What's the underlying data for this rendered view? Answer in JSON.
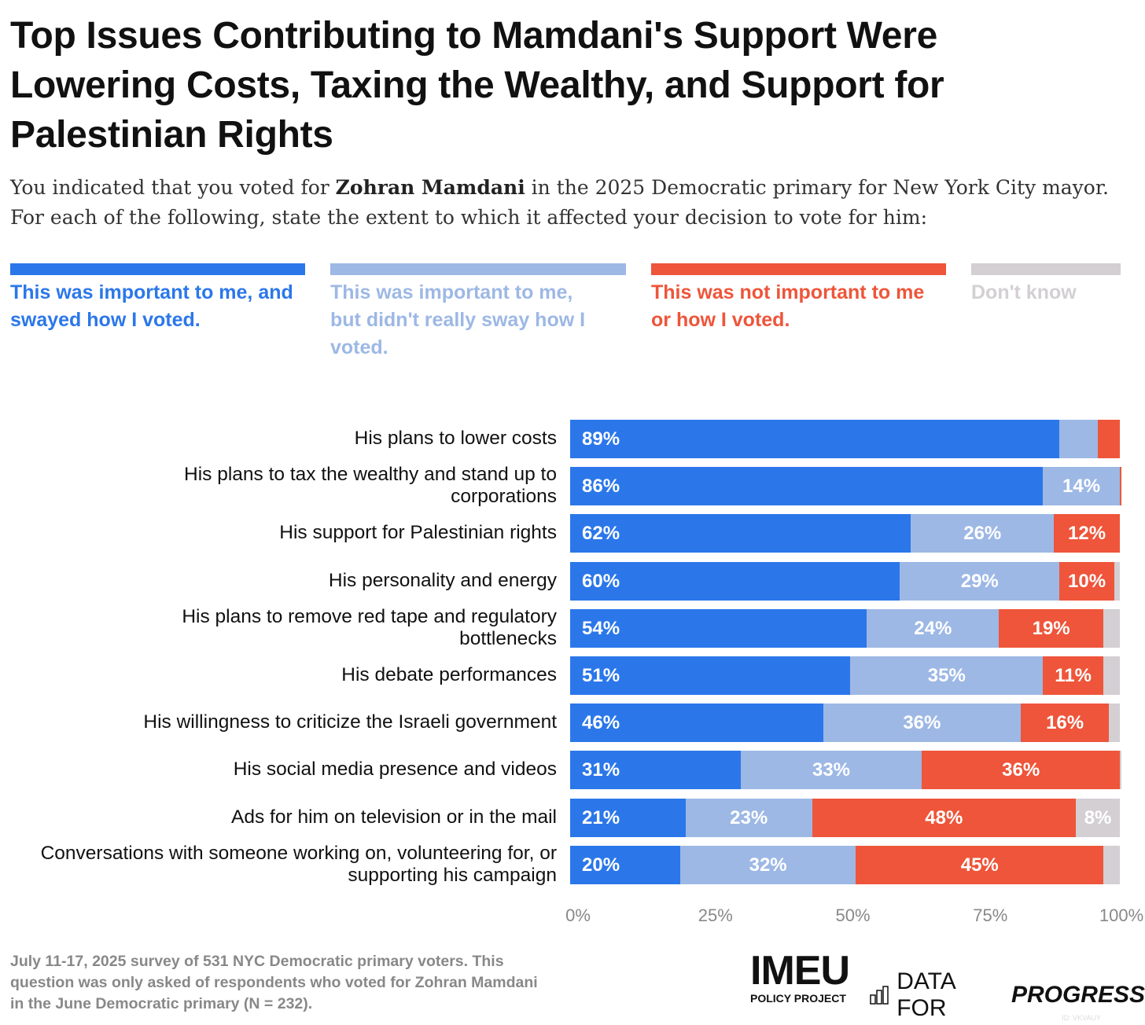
{
  "title": "Top Issues Contributing to Mamdani's Support Were Lowering Costs, Taxing the Wealthy, and Support for Palestinian Rights",
  "subtitle": {
    "pre": "You indicated that you voted for ",
    "bold": "Zohran Mamdani",
    "post": " in the 2025 Democratic primary for New York City mayor. For each of the following, state the extent to which it affected your decision to vote for him:"
  },
  "colors": {
    "swayed": "#2b77ea",
    "not_swayed": "#9db8e5",
    "not_important": "#ee553a",
    "dont_know": "#d3cfd3"
  },
  "chart_data": {
    "type": "bar",
    "orientation": "horizontal-stacked",
    "xlim": [
      0,
      100
    ],
    "xticks": [
      "0%",
      "25%",
      "50%",
      "75%",
      "100%"
    ],
    "legend": [
      {
        "key": "swayed",
        "label": "This was important to me, and swayed how I voted."
      },
      {
        "key": "not_swayed",
        "label": "This was important to me, but didn't really sway how I voted."
      },
      {
        "key": "not_important",
        "label": "This was not important to me or how I voted."
      },
      {
        "key": "dont_know",
        "label": "Don't know"
      }
    ],
    "legend_placement": "top",
    "categories": [
      "His plans to lower costs",
      "His plans to tax the wealthy and stand up to corporations",
      "His support for Palestinian rights",
      "His personality and energy",
      "His plans to remove red tape and regulatory bottlenecks",
      "His debate performances",
      "His willingness to criticize the Israeli government",
      "His social media presence and videos",
      "Ads for him on television or in the mail",
      "Conversations with someone working on, volunteering for, or supporting his campaign"
    ],
    "series": [
      {
        "name": "swayed",
        "values": [
          89,
          86,
          62,
          60,
          54,
          51,
          46,
          31,
          21,
          20
        ],
        "labels": [
          "89%",
          "86%",
          "62%",
          "60%",
          "54%",
          "51%",
          "46%",
          "31%",
          "21%",
          "20%"
        ]
      },
      {
        "name": "not_swayed",
        "values": [
          7,
          14,
          26,
          29,
          24,
          35,
          36,
          33,
          23,
          32
        ],
        "labels": [
          "",
          "14%",
          "26%",
          "29%",
          "24%",
          "35%",
          "36%",
          "33%",
          "23%",
          "32%"
        ]
      },
      {
        "name": "not_important",
        "values": [
          4,
          0.3,
          12,
          10,
          19,
          11,
          16,
          36,
          48,
          45
        ],
        "labels": [
          "",
          "",
          "12%",
          "10%",
          "19%",
          "11%",
          "16%",
          "36%",
          "48%",
          "45%"
        ]
      },
      {
        "name": "dont_know",
        "values": [
          0,
          0,
          0,
          1,
          3,
          3,
          2,
          0.3,
          8,
          3
        ],
        "labels": [
          "",
          "",
          "",
          "",
          "",
          "",
          "",
          "",
          "8%",
          ""
        ]
      }
    ]
  },
  "footnote": "July 11-17, 2025 survey of 531 NYC Democratic primary voters. This question was only asked of respondents who voted for Zohran Mamdani in the June Democratic primary (N = 232).",
  "logos": {
    "imeu": "IMEU",
    "imeu_sub": "POLICY PROJECT",
    "dfp_pre": "DATA FOR",
    "dfp_bold": "PROGRESS"
  },
  "watermark": "ID: VKVAUY"
}
